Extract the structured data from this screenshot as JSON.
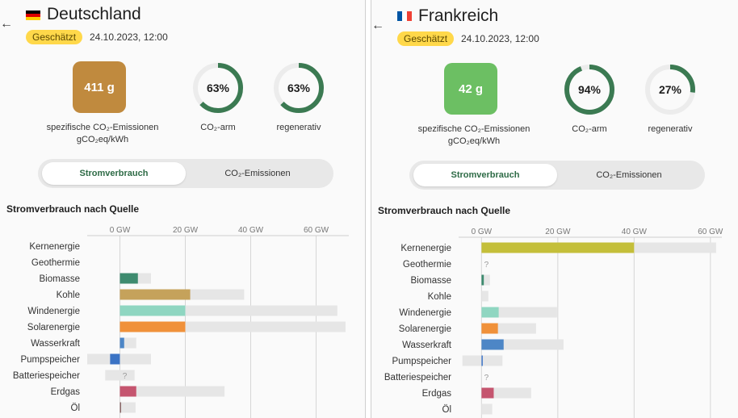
{
  "panels": [
    {
      "country": "Deutschland",
      "flag_colors": [
        "#000000",
        "#dd0000",
        "#ffce00"
      ],
      "badge": "Geschätzt",
      "datetime": "24.10.2023, 12:00",
      "carbon_intensity": {
        "value": "411 g",
        "color": "#c08a3e"
      },
      "ci_label_line1": "spezifische CO₂-Emissionen",
      "ci_label_line2": "gCO₂eq/kWh",
      "low_carbon": {
        "value": "63%",
        "fraction": 0.63,
        "label": "CO₂-arm"
      },
      "renewable": {
        "value": "63%",
        "fraction": 0.63,
        "label": "regenerativ"
      },
      "toggle": {
        "active": "Stromverbrauch",
        "inactive": "CO₂-Emissionen"
      },
      "section_title": "Stromverbrauch nach Quelle"
    },
    {
      "country": "Frankreich",
      "flag_colors": [
        "#0055a4",
        "#ffffff",
        "#ef4135"
      ],
      "badge": "Geschätzt",
      "datetime": "24.10.2023, 12:00",
      "carbon_intensity": {
        "value": "42 g",
        "color": "#6cbf63"
      },
      "ci_label_line1": "spezifische CO₂-Emissionen",
      "ci_label_line2": "gCO₂eq/kWh",
      "low_carbon": {
        "value": "94%",
        "fraction": 0.94,
        "label": "CO₂-arm"
      },
      "renewable": {
        "value": "27%",
        "fraction": 0.27,
        "label": "regenerativ"
      },
      "toggle": {
        "active": "Stromverbrauch",
        "inactive": "CO₂-Emissionen"
      },
      "section_title": "Stromverbrauch nach Quelle"
    }
  ],
  "colors": {
    "gauge_fill": "#3b7a52",
    "gauge_track": "#ececec",
    "capacity_bar": "#e6e6e6",
    "grid": "#d6d6d6"
  },
  "chart_data": [
    {
      "type": "bar",
      "orientation": "horizontal",
      "panel": "Deutschland",
      "ticks": [
        "0 GW",
        "20 GW",
        "40 GW",
        "60 GW"
      ],
      "xlim": [
        -10,
        70
      ],
      "unknown_mark": "?",
      "categories": [
        "Kernenergie",
        "Geothermie",
        "Biomasse",
        "Kohle",
        "Windenergie",
        "Solarenergie",
        "Wasserkraft",
        "Pumpspeicher",
        "Batteriespeicher",
        "Erdgas",
        "Öl"
      ],
      "colors": [
        "#c4bf3a",
        "#c06548",
        "#3e8b6f",
        "#c5a25b",
        "#8fd6c1",
        "#f0913a",
        "#4d86c6",
        "#3b73c4",
        "#9a7fc9",
        "#c5556f",
        "#8c6a6a"
      ],
      "production": [
        0,
        0,
        5.5,
        21.5,
        20,
        20,
        1.3,
        -3,
        null,
        5,
        0.3
      ],
      "capacity_min": [
        0,
        0,
        0,
        0,
        0,
        0,
        0,
        -10,
        -4.5,
        0,
        0
      ],
      "capacity_max": [
        0,
        0,
        9.5,
        38,
        66.5,
        69,
        5,
        9.5,
        4.5,
        32,
        4.8
      ]
    },
    {
      "type": "bar",
      "orientation": "horizontal",
      "panel": "Frankreich",
      "ticks": [
        "0 GW",
        "20 GW",
        "40 GW",
        "60 GW"
      ],
      "xlim": [
        -6,
        63
      ],
      "unknown_mark": "?",
      "categories": [
        "Kernenergie",
        "Geothermie",
        "Biomasse",
        "Kohle",
        "Windenergie",
        "Solarenergie",
        "Wasserkraft",
        "Pumpspeicher",
        "Batteriespeicher",
        "Erdgas",
        "Öl"
      ],
      "colors": [
        "#c4bf3a",
        "#c06548",
        "#3e8b6f",
        "#c5a25b",
        "#8fd6c1",
        "#f0913a",
        "#4d86c6",
        "#3b73c4",
        "#9a7fc9",
        "#c5556f",
        "#8c6a6a"
      ],
      "production": [
        40,
        null,
        0.6,
        0,
        4.5,
        4.3,
        5.8,
        0.3,
        null,
        3.2,
        0
      ],
      "capacity_min": [
        0,
        0,
        0,
        0,
        0,
        0,
        0,
        -5,
        0,
        0,
        0
      ],
      "capacity_max": [
        61.5,
        0,
        2.2,
        1.8,
        19.8,
        14.3,
        21.5,
        5.5,
        0,
        13,
        2.8
      ]
    }
  ]
}
